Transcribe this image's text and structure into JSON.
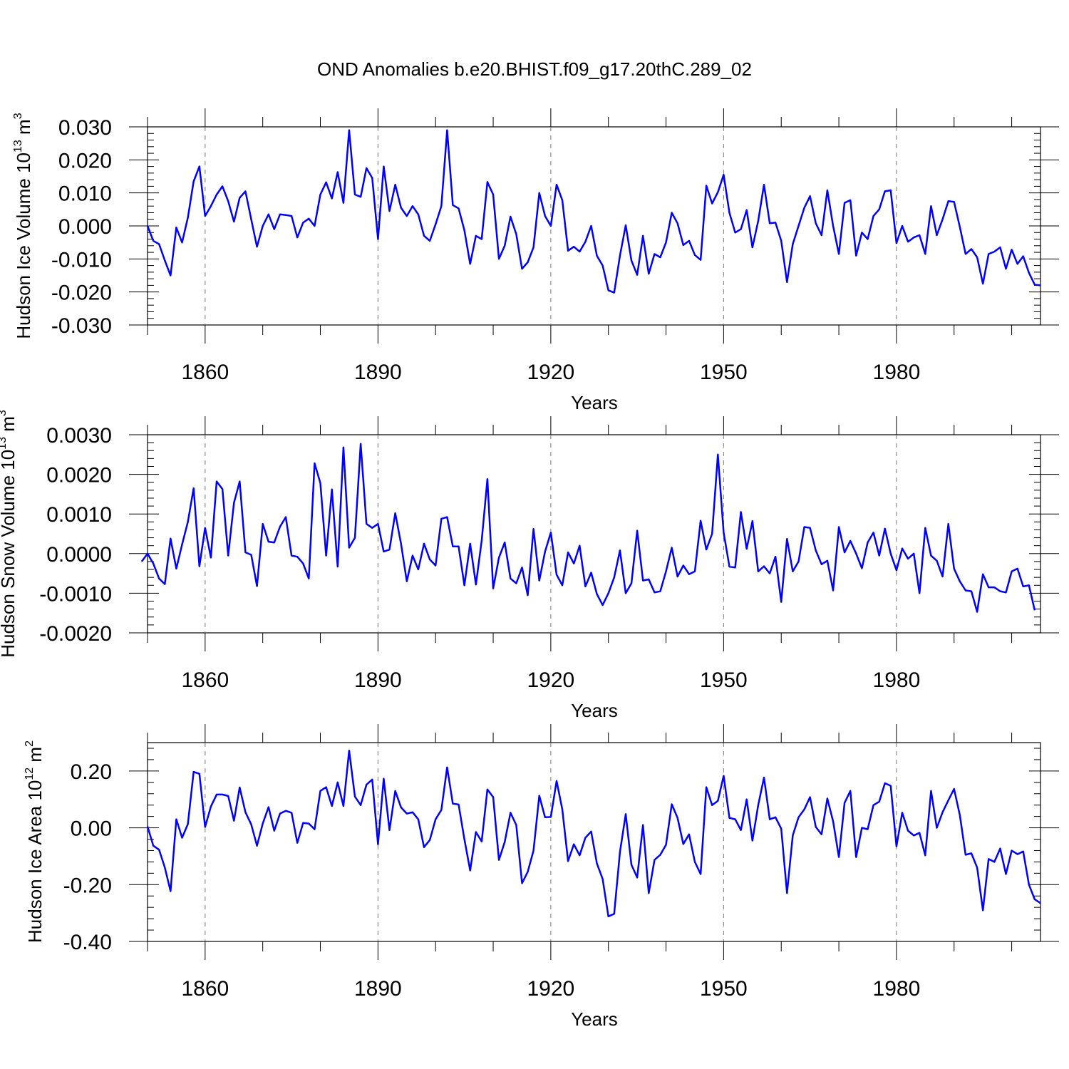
{
  "figure": {
    "title": "OND Anomalies b.e20.BHIST.f09_g17.20thC.289_02",
    "line_color": "#0000ff"
  },
  "chart_data": [
    {
      "type": "line",
      "ylabel_main": "Hudson Ice Volume 10",
      "ylabel_exp": "13",
      "ylabel_unit": " m",
      "ylabel_unit_exp": "3",
      "xlabel": "Years",
      "xlim": [
        1850,
        2005
      ],
      "ylim": [
        -0.03,
        0.03
      ],
      "yticks": [
        -0.03,
        -0.02,
        -0.01,
        0.0,
        0.01,
        0.02,
        0.03
      ],
      "ytick_labels": [
        "-0.030",
        "-0.020",
        "-0.010",
        "0.000",
        "0.010",
        "0.020",
        "0.030"
      ],
      "xticks": [
        1860,
        1890,
        1920,
        1950,
        1980
      ],
      "xtick_labels": [
        "1860",
        "1890",
        "1920",
        "1950",
        "1980"
      ],
      "x_start": 1850,
      "values": [
        0.0,
        -0.0045,
        -0.0055,
        -0.0105,
        -0.015,
        -0.0005,
        -0.005,
        0.0025,
        0.0135,
        0.018,
        0.003,
        0.006,
        0.0095,
        0.012,
        0.0075,
        0.0013,
        0.0085,
        0.0105,
        0.002,
        -0.0063,
        0.0,
        0.0035,
        -0.001,
        0.0035,
        0.0033,
        0.003,
        -0.0035,
        0.001,
        0.0022,
        0.0,
        0.0095,
        0.0132,
        0.0083,
        0.0163,
        0.007,
        0.029,
        0.0095,
        0.0088,
        0.0175,
        0.0145,
        -0.004,
        0.018,
        0.0045,
        0.0125,
        0.0055,
        0.003,
        0.006,
        0.0035,
        -0.003,
        -0.0045,
        0.0005,
        0.006,
        0.029,
        0.0063,
        0.0053,
        -0.0013,
        -0.0115,
        -0.003,
        -0.004,
        0.0133,
        0.0095,
        -0.01,
        -0.006,
        0.0028,
        -0.0025,
        -0.013,
        -0.011,
        -0.0065,
        0.01,
        0.003,
        0.0,
        0.0125,
        0.0078,
        -0.0075,
        -0.0063,
        -0.0078,
        -0.0048,
        0.0,
        -0.009,
        -0.012,
        -0.0195,
        -0.0202,
        -0.009,
        0.0002,
        -0.0105,
        -0.0148,
        -0.003,
        -0.0145,
        -0.0085,
        -0.0095,
        -0.005,
        0.004,
        0.0008,
        -0.0058,
        -0.0045,
        -0.0088,
        -0.0103,
        0.0122,
        0.0068,
        0.0102,
        0.0155,
        0.004,
        -0.002,
        -0.001,
        0.0048,
        -0.0065,
        0.0015,
        0.0125,
        0.0008,
        0.001,
        -0.0045,
        -0.017,
        -0.0055,
        0.0,
        0.0055,
        0.009,
        0.0008,
        -0.0028,
        0.0108,
        0.0,
        -0.0085,
        0.007,
        0.0078,
        -0.009,
        -0.002,
        -0.004,
        0.003,
        0.005,
        0.0105,
        0.0108,
        -0.0052,
        0.0,
        -0.0048,
        -0.0035,
        -0.0028,
        -0.0085,
        0.006,
        -0.0028,
        0.002,
        0.0075,
        0.0073,
        -0.0003,
        -0.0085,
        -0.007,
        -0.0095,
        -0.0175,
        -0.0085,
        -0.0078,
        -0.0065,
        -0.013,
        -0.0072,
        -0.0115,
        -0.0092,
        -0.0142,
        -0.0178,
        -0.018
      ]
    },
    {
      "type": "line",
      "ylabel_main": "Hudson Snow Volume 10",
      "ylabel_exp": "13",
      "ylabel_unit": " m",
      "ylabel_unit_exp": "3",
      "xlabel": "Years",
      "xlim": [
        1850,
        2005
      ],
      "ylim": [
        -0.002,
        0.003
      ],
      "yticks": [
        -0.002,
        -0.001,
        0.0,
        0.001,
        0.002,
        0.003
      ],
      "ytick_labels": [
        "-0.0020",
        "-0.0010",
        "0.0000",
        "0.0010",
        "0.0020",
        "0.0030"
      ],
      "xticks": [
        1860,
        1890,
        1920,
        1950,
        1980
      ],
      "xtick_labels": [
        "1860",
        "1890",
        "1920",
        "1950",
        "1980"
      ],
      "x_start": 1849,
      "values": [
        -0.0002,
        0.0,
        -0.00025,
        -0.00063,
        -0.00077,
        0.00038,
        -0.00038,
        0.00023,
        0.0008,
        0.00165,
        -0.00032,
        0.00065,
        -0.0001,
        0.00182,
        0.00163,
        -5e-05,
        0.00128,
        0.00182,
        3e-05,
        -3e-05,
        -0.00082,
        0.00075,
        0.0003,
        0.00028,
        0.00068,
        0.00092,
        -5e-05,
        -8e-05,
        -0.00025,
        -0.00063,
        0.00228,
        0.00178,
        -5e-05,
        0.00162,
        -0.00033,
        0.00268,
        0.00015,
        0.0004,
        0.00277,
        0.00075,
        0.00065,
        0.00075,
        5e-05,
        0.0001,
        0.00102,
        0.00025,
        -0.0007,
        -5e-05,
        -0.0004,
        0.00025,
        -0.00015,
        -0.0003,
        0.00088,
        0.00092,
        0.00018,
        0.00018,
        -0.0008,
        0.00025,
        -0.00078,
        0.00033,
        0.00188,
        -0.00088,
        -0.0001,
        0.00028,
        -0.00063,
        -0.00075,
        -0.00035,
        -0.00105,
        0.00062,
        -0.00068,
        5e-05,
        0.00053,
        -0.00053,
        -0.0008,
        3e-05,
        -0.00025,
        0.0002,
        -0.00083,
        -0.00048,
        -0.00102,
        -0.0013,
        -0.001,
        -0.0006,
        8e-05,
        -0.001,
        -0.00075,
        0.00058,
        -0.00068,
        -0.00065,
        -0.00098,
        -0.00095,
        -0.00045,
        0.00015,
        -0.00058,
        -0.0003,
        -0.00052,
        -0.00045,
        0.00083,
        0.0001,
        0.0005,
        0.0025,
        0.00053,
        -0.00033,
        -0.00035,
        0.00105,
        0.00012,
        0.00082,
        -0.00045,
        -0.00032,
        -0.0005,
        -8e-05,
        -0.00122,
        0.00037,
        -0.00045,
        -0.0002,
        0.00067,
        0.00065,
        8e-05,
        -0.00027,
        -0.00018,
        -0.00093,
        0.00067,
        3e-05,
        0.00032,
        0.0,
        -0.00037,
        0.00028,
        0.00053,
        -5e-05,
        0.00063,
        0.0,
        -0.00042,
        0.00013,
        -0.00013,
        0.0,
        -0.001,
        0.00065,
        -5e-05,
        -0.00018,
        -0.00058,
        0.00075,
        -0.00038,
        -0.0007,
        -0.00093,
        -0.00095,
        -0.00147,
        -0.00052,
        -0.00085,
        -0.00085,
        -0.00095,
        -0.00098,
        -0.00045,
        -0.00038,
        -0.00083,
        -0.0008,
        -0.00143
      ]
    },
    {
      "type": "line",
      "ylabel_main": "Hudson Ice Area 10",
      "ylabel_exp": "12",
      "ylabel_unit": " m",
      "ylabel_unit_exp": "2",
      "xlabel": "Years",
      "xlim": [
        1850,
        2005
      ],
      "ylim": [
        -0.4,
        0.3
      ],
      "yticks": [
        -0.4,
        -0.2,
        0.0,
        0.2
      ],
      "ytick_labels": [
        "-0.40",
        "-0.20",
        "0.00",
        "0.20"
      ],
      "xticks": [
        1860,
        1890,
        1920,
        1950,
        1980
      ],
      "xtick_labels": [
        "1860",
        "1890",
        "1920",
        "1950",
        "1980"
      ],
      "x_start": 1850,
      "values": [
        0.005,
        -0.063,
        -0.077,
        -0.14,
        -0.223,
        0.03,
        -0.035,
        0.013,
        0.197,
        0.19,
        0.003,
        0.075,
        0.117,
        0.117,
        0.112,
        0.025,
        0.142,
        0.055,
        0.012,
        -0.063,
        0.015,
        0.073,
        -0.01,
        0.05,
        0.06,
        0.053,
        -0.053,
        0.017,
        0.015,
        -0.005,
        0.13,
        0.143,
        0.077,
        0.16,
        0.077,
        0.272,
        0.11,
        0.08,
        0.152,
        0.17,
        -0.058,
        0.173,
        -0.008,
        0.13,
        0.072,
        0.05,
        0.055,
        0.03,
        -0.068,
        -0.043,
        0.03,
        0.063,
        0.213,
        0.085,
        0.082,
        -0.04,
        -0.15,
        -0.015,
        -0.048,
        0.135,
        0.108,
        -0.113,
        -0.05,
        0.053,
        0.01,
        -0.195,
        -0.155,
        -0.08,
        0.113,
        0.037,
        0.038,
        0.165,
        0.065,
        -0.117,
        -0.058,
        -0.097,
        -0.035,
        -0.013,
        -0.125,
        -0.18,
        -0.312,
        -0.303,
        -0.085,
        0.048,
        -0.13,
        -0.175,
        0.01,
        -0.23,
        -0.113,
        -0.095,
        -0.06,
        0.083,
        0.035,
        -0.057,
        -0.023,
        -0.12,
        -0.163,
        0.143,
        0.08,
        0.095,
        0.183,
        0.035,
        0.03,
        -0.008,
        0.1,
        -0.045,
        0.08,
        0.177,
        0.03,
        0.037,
        -0.003,
        -0.23,
        -0.027,
        0.037,
        0.065,
        0.108,
        0.003,
        -0.023,
        0.103,
        0.023,
        -0.103,
        0.088,
        0.13,
        -0.103,
        0.0,
        -0.005,
        0.08,
        0.092,
        0.157,
        0.148,
        -0.065,
        0.053,
        -0.01,
        -0.027,
        -0.018,
        -0.097,
        0.13,
        0.0,
        0.055,
        0.097,
        0.137,
        0.045,
        -0.095,
        -0.09,
        -0.14,
        -0.29,
        -0.11,
        -0.12,
        -0.073,
        -0.163,
        -0.08,
        -0.093,
        -0.083,
        -0.2,
        -0.252,
        -0.265
      ]
    }
  ]
}
